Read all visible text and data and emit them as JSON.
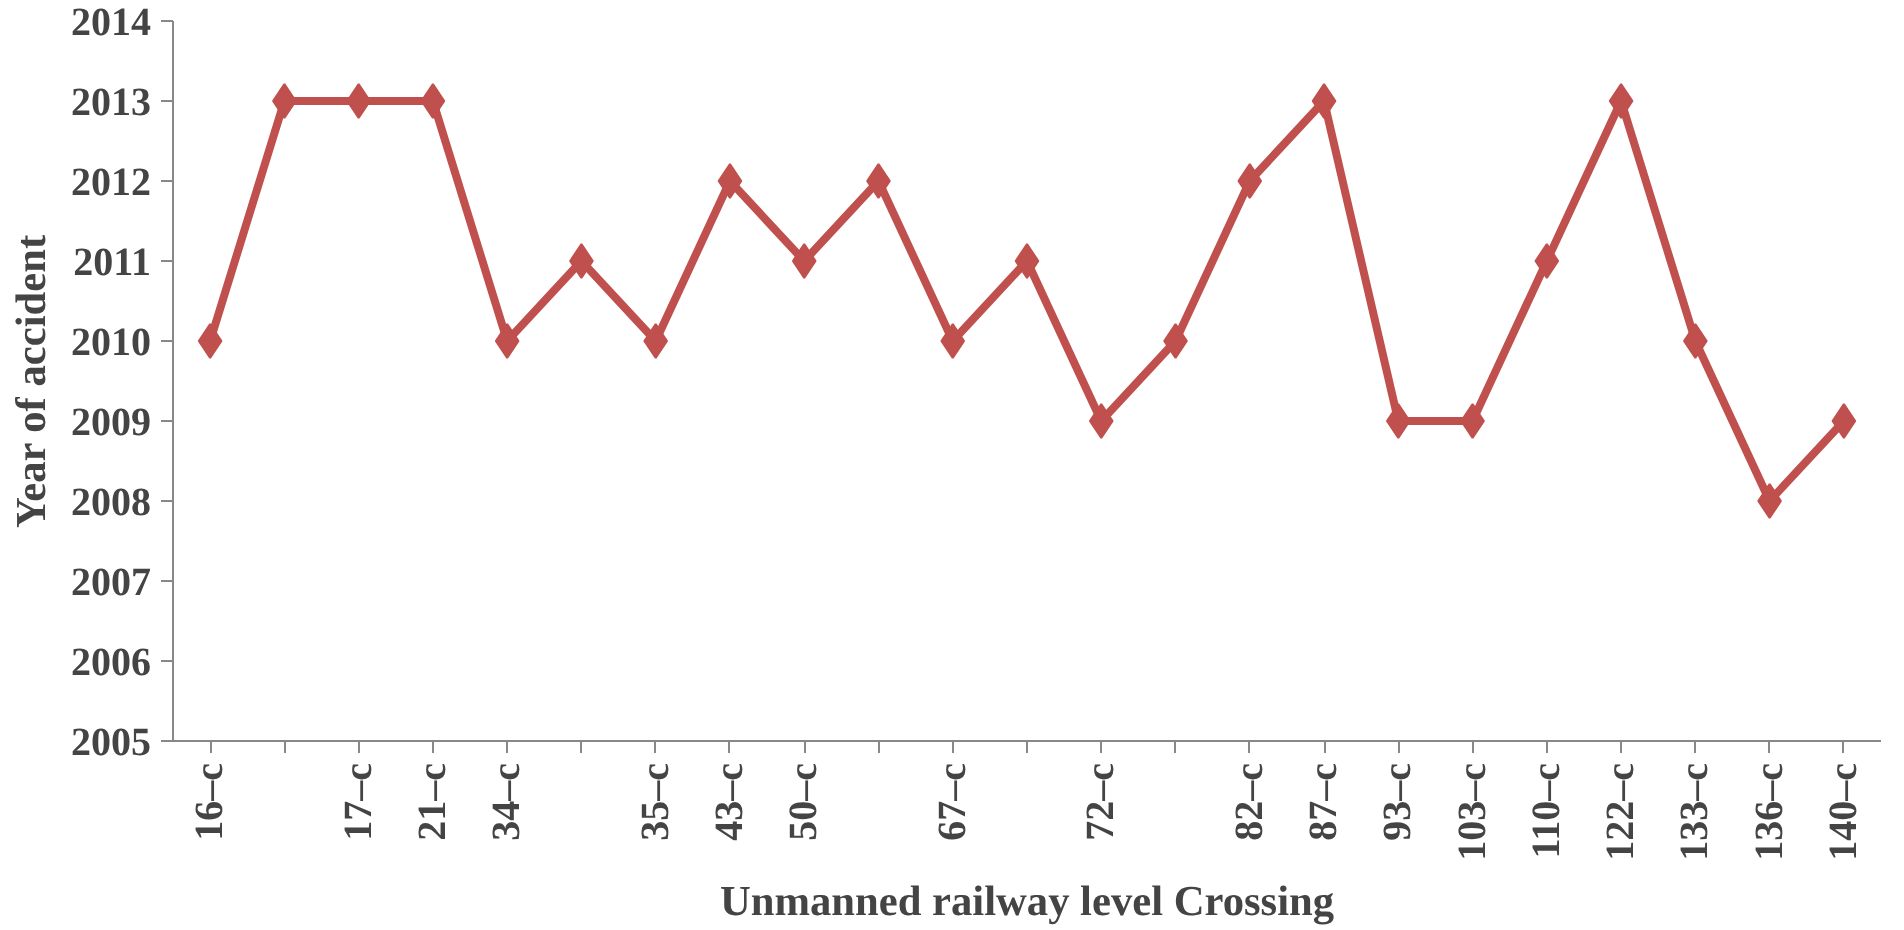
{
  "chart_data": {
    "type": "line",
    "xlabel": "Unmanned railway level Crossing",
    "ylabel": "Year of accident",
    "categories": [
      "16–c",
      null,
      "17–c",
      "21–c",
      "34–c",
      null,
      "35–c",
      "43–c",
      "50–c",
      null,
      "67–c",
      null,
      "72–c",
      null,
      "82–c",
      "87–c",
      "93–c",
      "103–c",
      "110–c",
      "122–c",
      "133–c",
      "136–c",
      "140–c"
    ],
    "series": [
      {
        "color": "#c0504d",
        "values": [
          2010,
          2013,
          2013,
          2013,
          2010,
          2011,
          2010,
          2012,
          2011,
          2012,
          2010,
          2011,
          2009,
          2010,
          2012,
          2013,
          2009,
          2009,
          2011,
          2013,
          2010,
          2008,
          2009
        ]
      }
    ],
    "ylim": [
      2005,
      2014
    ],
    "yticks": [
      2005,
      2006,
      2007,
      2008,
      2009,
      2010,
      2011,
      2012,
      2013,
      2014
    ],
    "marker": "diamond",
    "line_style": "solid",
    "grid": false
  }
}
